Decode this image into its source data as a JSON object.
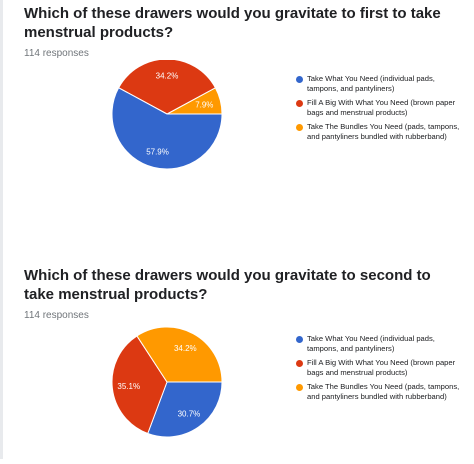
{
  "charts": [
    {
      "question": "Which of these drawers would you gravitate to first to take menstrual products?",
      "responses": "114 responses"
    },
    {
      "question": "Which of these drawers would you gravitate to second to take menstrual products?",
      "responses": "114 responses"
    }
  ],
  "colors": {
    "blue": "#3366cc",
    "red": "#dc3912",
    "orange": "#ff9900"
  },
  "chart_data": [
    {
      "type": "pie",
      "title": "Which of these drawers would you gravitate to first to take menstrual products?",
      "categories": [
        "Take What You Need (individual pads, tampons, and pantyliners)",
        "Fill A Big With What You Need (brown paper bags and menstrual products)",
        "Take The Bundles You Need (pads, tampons, and pantyliners bundled with rubberband)"
      ],
      "values": [
        57.9,
        34.2,
        7.9
      ],
      "labels": [
        "57.9%",
        "34.2%",
        "7.9%"
      ],
      "colors": [
        "#3366cc",
        "#dc3912",
        "#ff9900"
      ],
      "legend": "right"
    },
    {
      "type": "pie",
      "title": "Which of these drawers would you gravitate to second to take menstrual products?",
      "categories": [
        "Take What You Need (individual pads, tampons, and pantyliners)",
        "Fill A Big With What You Need (brown paper bags and menstrual products)",
        "Take The Bundles You Need (pads, tampons, and pantyliners bundled with rubberband)"
      ],
      "values": [
        30.7,
        35.1,
        34.2
      ],
      "labels": [
        "30.7%",
        "35.1%",
        "34.2%"
      ],
      "colors": [
        "#3366cc",
        "#dc3912",
        "#ff9900"
      ],
      "legend": "right"
    }
  ]
}
